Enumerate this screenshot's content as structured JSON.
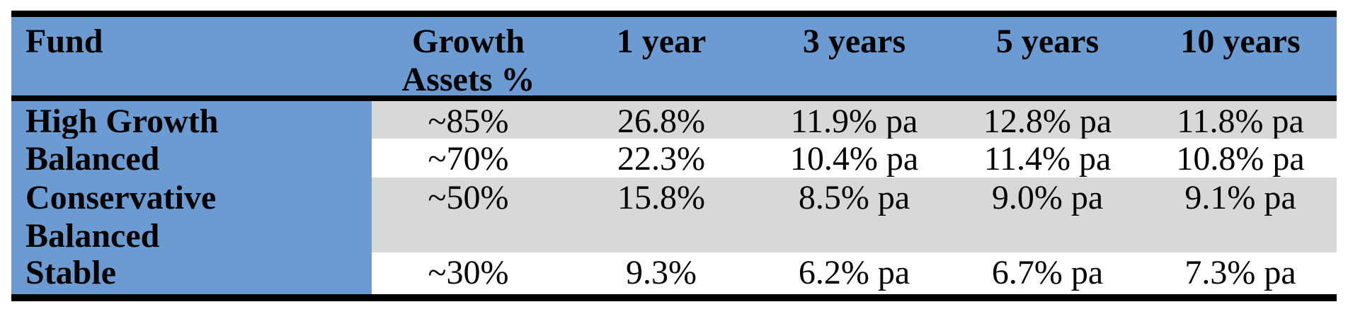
{
  "table": {
    "headers": [
      "Fund",
      "Growth Assets %",
      "1 year",
      "3 years",
      "5 years",
      "10 years"
    ],
    "rows": [
      {
        "shaded": true,
        "cells": [
          "High Growth",
          "~85%",
          "26.8%",
          "11.9% pa",
          "12.8% pa",
          "11.8% pa"
        ]
      },
      {
        "shaded": false,
        "cells": [
          "Balanced",
          "~70%",
          "22.3%",
          "10.4% pa",
          "11.4% pa",
          "10.8% pa"
        ]
      },
      {
        "shaded": true,
        "cells": [
          "Conservative\nBalanced",
          "~50%",
          "15.8%",
          "8.5% pa",
          "9.0% pa",
          "9.1% pa"
        ]
      },
      {
        "shaded": false,
        "cells": [
          "Stable",
          "~30%",
          "9.3%",
          "6.2% pa",
          "6.7% pa",
          "7.3% pa"
        ]
      }
    ],
    "colors": {
      "header_bg": "#6C9BD2",
      "fund_column_bg": "#6C9BD2",
      "row_shaded_bg": "#D8D8D8",
      "row_plain_bg": "#FFFFFF",
      "rule_color": "#000000",
      "text_color": "#000000"
    }
  }
}
